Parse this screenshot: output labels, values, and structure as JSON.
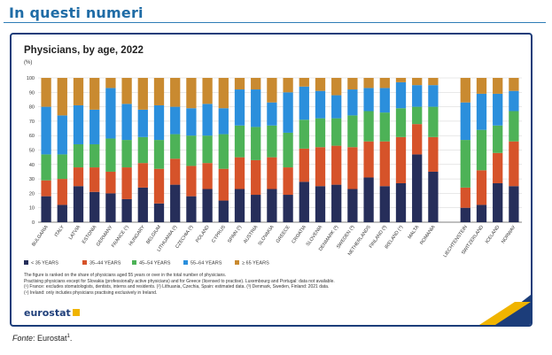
{
  "page": {
    "heading": "In questi numeri",
    "source_label": "Fonte",
    "source_text": ": Eurostat",
    "source_sup": "1",
    "source_end": ".",
    "brand": "eurostat",
    "colors": {
      "heading": "#1f6ca6",
      "frame": "#1c3d7a"
    }
  },
  "chart_data": {
    "type": "bar",
    "stacked": true,
    "title": "Physicians, by age, 2022",
    "ylabel": "(%)",
    "ylim": [
      0,
      100
    ],
    "yticks": [
      0,
      10,
      20,
      30,
      40,
      50,
      60,
      70,
      80,
      90,
      100
    ],
    "grid": true,
    "legend_position": "bottom",
    "categories": [
      "Bulgaria",
      "Italy",
      "Latvia",
      "Estonia",
      "Germany",
      "France (¹)",
      "Hungary",
      "Belgium",
      "Lithuania (²)",
      "Czechia (²)",
      "Poland",
      "Cyprus",
      "Spain (²)",
      "Austria",
      "Slovakia",
      "Greece",
      "Croatia",
      "Slovenia",
      "Denmark (³)",
      "Sweden (³)",
      "Netherlands",
      "Finland (³)",
      "Ireland (⁴)",
      "Malta",
      "Romania",
      "",
      "Liechtenstein",
      "Switzerland",
      "Iceland",
      "Norway"
    ],
    "series": [
      {
        "name": "< 35 YEARS",
        "color": "#262e5a",
        "values": [
          18,
          12,
          25,
          21,
          20,
          16,
          24,
          13,
          26,
          18,
          23,
          15,
          23,
          19,
          23,
          19,
          28,
          25,
          26,
          23,
          31,
          25,
          27,
          47,
          35,
          null,
          10,
          12,
          27,
          25
        ]
      },
      {
        "name": "35–44 YEARS",
        "color": "#d6532a",
        "values": [
          11,
          18,
          13,
          17,
          15,
          22,
          17,
          24,
          18,
          21,
          18,
          22,
          22,
          24,
          22,
          19,
          23,
          27,
          27,
          29,
          25,
          31,
          32,
          21,
          24,
          null,
          14,
          24,
          21,
          31
        ]
      },
      {
        "name": "45–54 YEARS",
        "color": "#4db257",
        "values": [
          18,
          17,
          16,
          16,
          23,
          19,
          18,
          20,
          17,
          21,
          19,
          24,
          22,
          23,
          22,
          24,
          20,
          20,
          19,
          22,
          21,
          20,
          20,
          12,
          21,
          null,
          33,
          28,
          19,
          21
        ]
      },
      {
        "name": "55–64 YEARS",
        "color": "#2b8fdc",
        "values": [
          33,
          27,
          27,
          24,
          35,
          25,
          19,
          24,
          19,
          19,
          22,
          18,
          25,
          26,
          16,
          28,
          23,
          19,
          16,
          18,
          16,
          17,
          18,
          15,
          15,
          null,
          26,
          25,
          22,
          14
        ]
      },
      {
        "name": "≥ 65 YEARS",
        "color": "#c98a30",
        "values": [
          20,
          26,
          19,
          22,
          7,
          18,
          22,
          19,
          20,
          21,
          18,
          21,
          8,
          8,
          17,
          10,
          6,
          9,
          12,
          8,
          7,
          7,
          3,
          5,
          5,
          null,
          17,
          11,
          11,
          9
        ]
      }
    ],
    "notes": [
      "The figure is ranked on the share of physicians aged 55 years or over in the total number of physicians.",
      "Practising physicians except for Slovakia (professionally active physicians) and for Greece (licensed to practise). Luxembourg and Portugal: data not available.",
      "(¹) France: excludes stomatologists, dentists, interns and residents. (²) Lithuania, Czechia, Spain: estimated data. (³) Denmark, Sweden, Finland: 2021 data.",
      "(⁴) Ireland: only includes physicians practising exclusively in Ireland."
    ]
  }
}
